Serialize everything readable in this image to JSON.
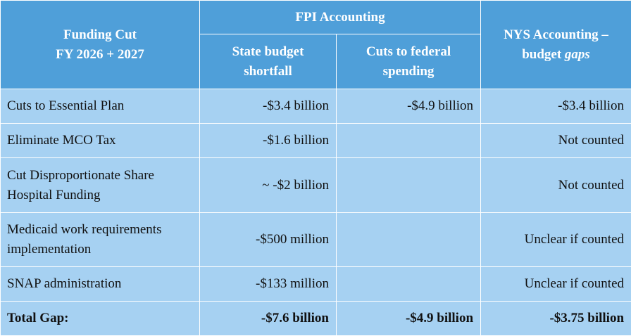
{
  "header": {
    "funding_cut_line1": "Funding Cut",
    "funding_cut_line2": "FY 2026 + 2027",
    "fpi_group": "FPI Accounting",
    "state_budget_line1": "State budget",
    "state_budget_line2": "shortfall",
    "federal_cuts_line1": "Cuts to federal",
    "federal_cuts_line2": "spending",
    "nys_line1": "NYS Accounting –",
    "nys_line2_prefix": "budget ",
    "nys_line2_italic": "gaps"
  },
  "rows": [
    {
      "label_line1": "Cuts to Essential Plan",
      "label_line2": "",
      "state_shortfall": "-$3.4 billion",
      "federal_cuts": "-$4.9 billion",
      "nys_gap": "-$3.4 billion"
    },
    {
      "label_line1": "Eliminate MCO Tax",
      "label_line2": "",
      "state_shortfall": "-$1.6 billion",
      "federal_cuts": "",
      "nys_gap": "Not counted"
    },
    {
      "label_line1": "Cut Disproportionate Share",
      "label_line2": "Hospital Funding",
      "state_shortfall": "~ -$2 billion",
      "federal_cuts": "",
      "nys_gap": "Not counted"
    },
    {
      "label_line1": "Medicaid work requirements",
      "label_line2": "implementation",
      "state_shortfall": "-$500 million",
      "federal_cuts": "",
      "nys_gap": "Unclear if counted"
    },
    {
      "label_line1": "SNAP administration",
      "label_line2": "",
      "state_shortfall": "-$133 million",
      "federal_cuts": "",
      "nys_gap": "Unclear if counted"
    }
  ],
  "total": {
    "label": "Total Gap:",
    "state_shortfall": "-$7.6 billion",
    "federal_cuts": "-$4.9 billion",
    "nys_gap": "-$3.75 billion"
  },
  "colors": {
    "header_bg": "#4f9fd9",
    "body_bg": "#a6d1f2",
    "header_text": "#ffffff"
  }
}
